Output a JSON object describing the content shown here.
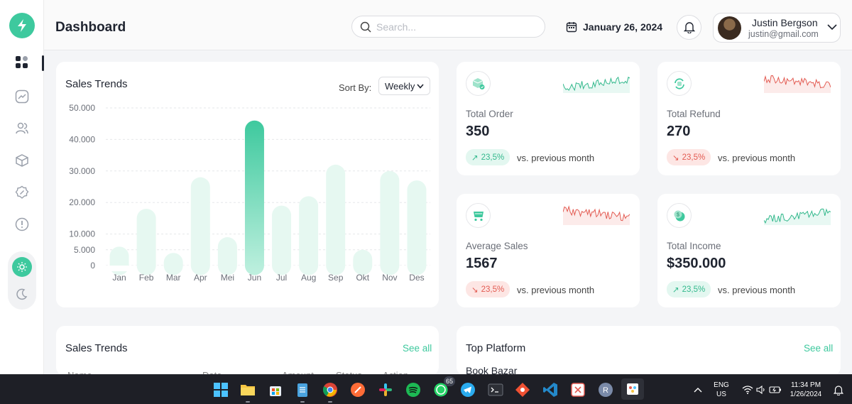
{
  "header": {
    "title": "Dashboard",
    "search_placeholder": "Search...",
    "date": "January 26, 2024",
    "user_name": "Justin Bergson",
    "user_email": "justin@gmail.com"
  },
  "sales_trends": {
    "title": "Sales Trends",
    "sort_label": "Sort By:",
    "sort_value": "Weekly"
  },
  "chart_data": {
    "type": "bar",
    "title": "Sales Trends",
    "categories": [
      "Jan",
      "Feb",
      "Mar",
      "Apr",
      "Mei",
      "Jun",
      "Jul",
      "Aug",
      "Sep",
      "Okt",
      "Nov",
      "Des"
    ],
    "values": [
      6000,
      18000,
      4000,
      28000,
      9000,
      46000,
      19000,
      22000,
      32000,
      5000,
      30000,
      27000
    ],
    "highlight_index": 5,
    "y_ticks": [
      0,
      5000,
      10000,
      20000,
      30000,
      40000,
      50000
    ],
    "y_tick_labels": [
      "0",
      "5.000",
      "10.000",
      "20.000",
      "30.000",
      "40.000",
      "50.000"
    ],
    "ylim": [
      0,
      50000
    ],
    "xlabel": "",
    "ylabel": ""
  },
  "stats": [
    {
      "label": "Total Order",
      "value": "350",
      "change": "23,5%",
      "trend": "up",
      "compare": "vs. previous month",
      "icon": "box-icon"
    },
    {
      "label": "Total Refund",
      "value": "270",
      "change": "23,5%",
      "trend": "down",
      "compare": "vs. previous month",
      "icon": "refund-icon"
    },
    {
      "label": "Average Sales",
      "value": "1567",
      "change": "23,5%",
      "trend": "down",
      "compare": "vs. previous month",
      "icon": "cart-icon"
    },
    {
      "label": "Total Income",
      "value": "$350.000",
      "change": "23,5%",
      "trend": "up",
      "compare": "vs. previous month",
      "icon": "coin-icon"
    }
  ],
  "bottom_left": {
    "title": "Sales Trends",
    "see_all": "See all",
    "columns": [
      "Name",
      "Date",
      "Amount",
      "Status",
      "Action"
    ]
  },
  "bottom_right": {
    "title": "Top Platform",
    "see_all": "See all",
    "first_item": "Book Bazar"
  },
  "taskbar": {
    "whatsapp_badge": "65",
    "lang_line1": "ENG",
    "lang_line2": "US",
    "time": "11:34 PM",
    "date": "1/26/2024"
  },
  "colors": {
    "accent": "#3ec99e",
    "up": "#34b98d",
    "down": "#e35b52"
  }
}
